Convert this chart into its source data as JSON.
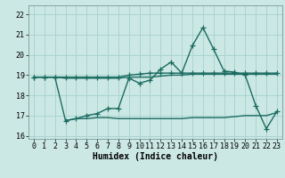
{
  "xlabel": "Humidex (Indice chaleur)",
  "background_color": "#cce8e4",
  "grid_color": "#aad4d0",
  "line_color": "#1a6b60",
  "xlim": [
    -0.5,
    23.5
  ],
  "ylim": [
    15.85,
    22.45
  ],
  "yticks": [
    16,
    17,
    18,
    19,
    20,
    21,
    22
  ],
  "xticks": [
    0,
    1,
    2,
    3,
    4,
    5,
    6,
    7,
    8,
    9,
    10,
    11,
    12,
    13,
    14,
    15,
    16,
    17,
    18,
    19,
    20,
    21,
    22,
    23
  ],
  "series": [
    {
      "x": [
        0,
        1,
        2,
        3,
        4,
        5,
        6,
        7,
        8,
        9,
        10,
        11,
        12,
        13,
        14,
        15,
        16,
        17,
        18,
        19,
        20,
        21,
        22,
        23
      ],
      "y": [
        18.9,
        18.9,
        18.9,
        18.9,
        18.9,
        18.9,
        18.9,
        18.9,
        18.9,
        19.0,
        19.05,
        19.1,
        19.1,
        19.1,
        19.1,
        19.1,
        19.1,
        19.1,
        19.1,
        19.1,
        19.1,
        19.1,
        19.1,
        19.1
      ],
      "marker": true
    },
    {
      "x": [
        0,
        1,
        2,
        3,
        4,
        5,
        6,
        7,
        8,
        9,
        10,
        11,
        12,
        13,
        14,
        15,
        16,
        17,
        18,
        19,
        20,
        21,
        22,
        23
      ],
      "y": [
        18.9,
        18.9,
        18.9,
        18.85,
        18.85,
        18.85,
        18.85,
        18.85,
        18.85,
        18.9,
        18.9,
        18.9,
        18.95,
        19.0,
        19.0,
        19.05,
        19.05,
        19.05,
        19.05,
        19.05,
        19.05,
        19.05,
        19.05,
        19.05
      ],
      "marker": false
    },
    {
      "x": [
        0,
        1,
        2,
        3,
        4,
        5,
        6,
        7,
        8,
        9,
        10,
        11,
        12,
        13,
        14,
        15,
        16,
        17,
        18,
        19,
        20,
        21,
        22,
        23
      ],
      "y": [
        18.9,
        18.9,
        18.9,
        16.75,
        16.85,
        17.0,
        17.1,
        17.35,
        17.35,
        18.85,
        18.6,
        18.75,
        19.3,
        19.65,
        19.1,
        20.45,
        21.35,
        20.3,
        19.2,
        19.15,
        19.0,
        17.5,
        16.35,
        17.2
      ],
      "marker": true
    },
    {
      "x": [
        3,
        4,
        5,
        6,
        7,
        8,
        9,
        10,
        11,
        12,
        13,
        14,
        15,
        16,
        17,
        18,
        19,
        20,
        21,
        22,
        23
      ],
      "y": [
        16.75,
        16.85,
        16.85,
        16.9,
        16.9,
        16.85,
        16.85,
        16.85,
        16.85,
        16.85,
        16.85,
        16.85,
        16.9,
        16.9,
        16.9,
        16.9,
        16.95,
        17.0,
        17.0,
        17.0,
        17.15
      ],
      "marker": false
    }
  ],
  "marker_size": 4,
  "line_width": 1.0,
  "tick_fontsize": 6.0,
  "xlabel_fontsize": 7.0
}
